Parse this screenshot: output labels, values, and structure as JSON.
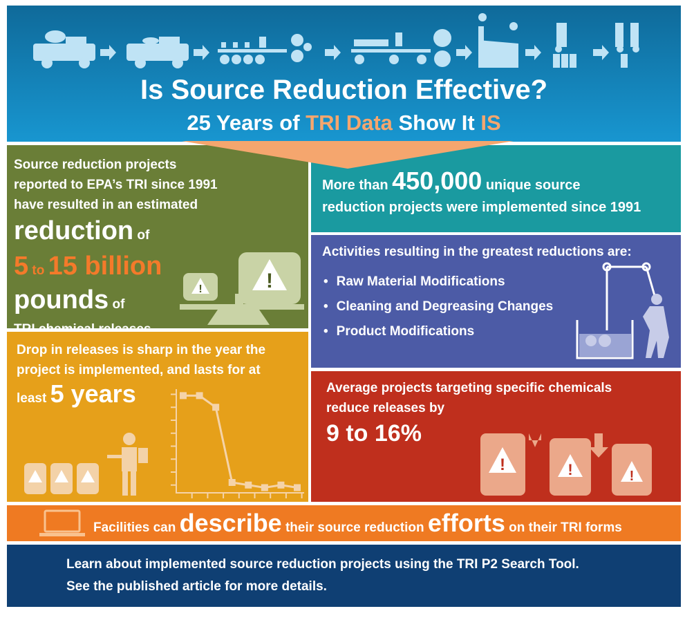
{
  "header": {
    "title": "Is Source Reduction Effective?",
    "subtitle_pre": "25 Years of ",
    "subtitle_hl": "TRI Data",
    "subtitle_mid": " Show It ",
    "subtitle_end": "IS"
  },
  "green": {
    "line1": "Source reduction projects",
    "line2": "reported to EPA’s TRI since 1991",
    "line3": "have resulted in an estimated",
    "reduction": "reduction",
    "of1": "of",
    "amount_a": "5",
    "to": "to",
    "amount_b": "15 billion",
    "pounds": "pounds",
    "of2": "of",
    "line_end": "TRI chemical releases"
  },
  "teal": {
    "pre": "More than",
    "number": "450,000",
    "post1": "unique source",
    "post2": "reduction projects were implemented since 1991"
  },
  "purple": {
    "heading": "Activities resulting in the greatest reductions are:",
    "items": [
      "Raw Material Modifications",
      "Cleaning and Degreasing Changes",
      "Product Modifications"
    ]
  },
  "yellow": {
    "line1": "Drop in releases is sharp in the year the",
    "line2": "project is implemented, and lasts for at",
    "line3": "least",
    "years": "5 years"
  },
  "red": {
    "line1": "Average projects targeting specific chemicals",
    "line2": "reduce releases by",
    "value": "9 to 16%"
  },
  "orange": {
    "a": "Facilities can",
    "b": "describe",
    "c": "their source reduction",
    "d": "efforts",
    "e": "on their TRI forms"
  },
  "footer": {
    "line1": "Learn about implemented source reduction projects using the TRI P2 Search Tool.",
    "line2": "See the published article for more details."
  },
  "colors": {
    "header": "#1386c0",
    "green": "#6a7e37",
    "teal": "#1a9aa0",
    "purple": "#4c5ba6",
    "yellow": "#e6a01a",
    "red": "#bf2f1d",
    "orange": "#ef7a22",
    "navy": "#0f3f73",
    "accent": "#f47a2a"
  },
  "chart_data": {
    "type": "line",
    "values": [
      7.5,
      7.5,
      6.6,
      0.8,
      0.6,
      0.4,
      0.6,
      0.4
    ],
    "ylim": [
      0,
      8
    ],
    "grid": false
  }
}
